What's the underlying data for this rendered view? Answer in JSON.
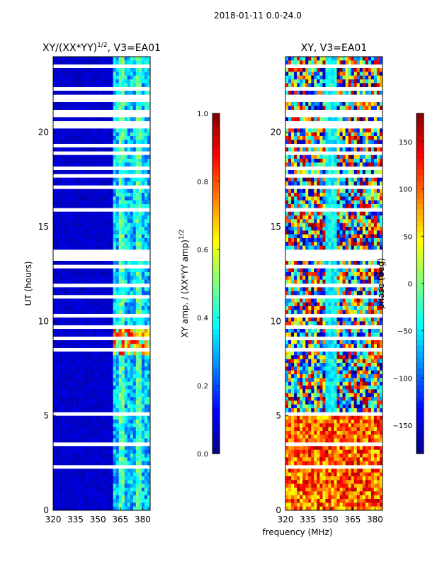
{
  "suptitle": "2018-01-11 0.0-24.0",
  "xlabel_shared": "frequency (MHz)",
  "colors": {
    "jet_dark_blue": "#00007f",
    "jet_blue": "#0000ff",
    "jet_cyan": "#00ffff",
    "jet_yellow": "#ffff00",
    "jet_red": "#ff0000",
    "jet_dark_red": "#7f0000",
    "missing_data": "#ffffff"
  },
  "chart_data": [
    {
      "id": "amp",
      "type": "heatmap",
      "title_prefix": "XY/(XX*YY)",
      "title_exp": "1/2",
      "title_suffix": ", V3=EA01",
      "xlabel": "",
      "ylabel": "UT (hours)",
      "xlim": [
        320,
        385
      ],
      "ylim": [
        0,
        24
      ],
      "xticks": [
        320,
        335,
        350,
        365,
        380
      ],
      "yticks": [
        0,
        5,
        10,
        15,
        20
      ],
      "colorbar": {
        "label_prefix": "XY amp. / (XX*YY amp)",
        "label_exp": "1/2",
        "min": 0.0,
        "max": 1.0,
        "ticks": [
          "0.0",
          "0.2",
          "0.4",
          "0.6",
          "0.8",
          "1.0"
        ],
        "tick_values": [
          0.0,
          0.2,
          0.4,
          0.6,
          0.8,
          1.0
        ]
      }
    },
    {
      "id": "phase",
      "type": "heatmap",
      "title_prefix": "XY, V3=EA01",
      "title_exp": "",
      "title_suffix": "",
      "xlabel": "",
      "ylabel": "",
      "xlim": [
        320,
        385
      ],
      "ylim": [
        0,
        24
      ],
      "xticks": [
        320,
        335,
        350,
        365,
        380
      ],
      "yticks": [
        0,
        5,
        10,
        15,
        20
      ],
      "colorbar": {
        "label_prefix": "phase (deg)",
        "label_exp": "",
        "min": -180,
        "max": 180,
        "ticks": [
          "−150",
          "−100",
          "−50",
          "0",
          "50",
          "100",
          "150"
        ],
        "tick_values": [
          -150,
          -100,
          -50,
          0,
          50,
          100,
          150
        ]
      }
    }
  ]
}
